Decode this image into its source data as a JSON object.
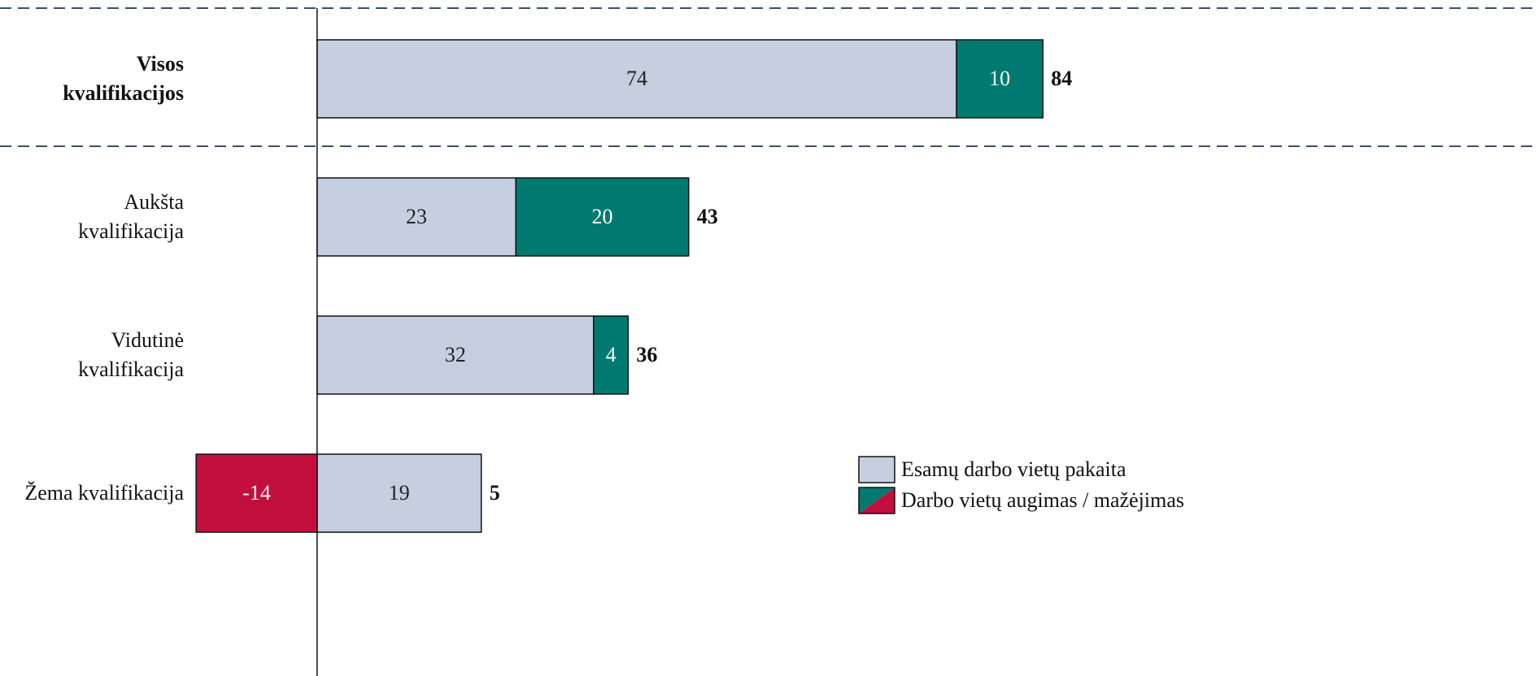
{
  "chart_data": {
    "type": "stacked-barh",
    "categories": [
      "Visos kvalifikacijos",
      "Aukšta kvalifikacija",
      "Vidutinė kvalifikacija",
      "Žema kvalifikacija"
    ],
    "series": [
      {
        "name": "Esamų darbo vietų pakaita",
        "color": "#c5cfe0",
        "values": [
          74,
          23,
          32,
          19
        ]
      },
      {
        "name": "Darbo vietų augimas / mažėjimas",
        "color": "#007a70",
        "negative_color": "#c30f3e",
        "values": [
          10,
          20,
          4,
          -14
        ]
      }
    ],
    "totals": [
      84,
      43,
      36,
      5
    ],
    "xlim": [
      -36.7,
      141.3
    ],
    "legend": "lower right"
  }
}
